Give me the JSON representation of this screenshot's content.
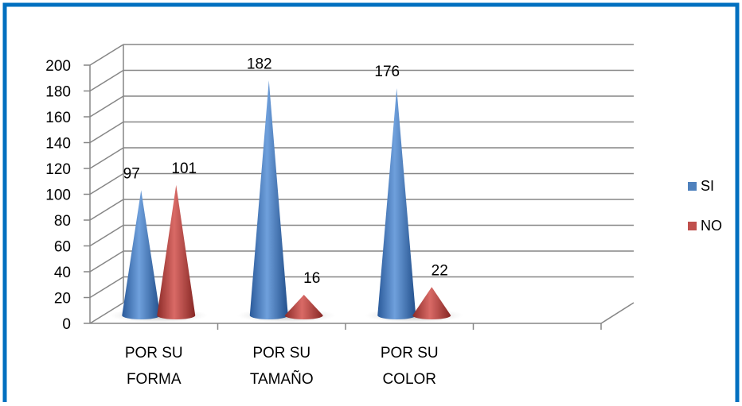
{
  "chart_data": {
    "type": "bar",
    "bar_shape": "cone-3d",
    "title": "",
    "xlabel": "",
    "ylabel": "",
    "ylim": [
      0,
      200
    ],
    "ytick_step": 20,
    "grid": true,
    "legend_position": "right",
    "categories": [
      "POR SU FORMA",
      "POR SU TAMAÑO",
      "POR SU COLOR"
    ],
    "category_lines": [
      [
        "POR SU",
        "FORMA"
      ],
      [
        "POR SU",
        "TAMAÑO"
      ],
      [
        "POR SU",
        "COLOR"
      ]
    ],
    "series": [
      {
        "name": "SI",
        "values": [
          97,
          182,
          176
        ],
        "color": "#4F81BD"
      },
      {
        "name": "NO",
        "values": [
          101,
          16,
          22
        ],
        "color": "#C0504D"
      }
    ],
    "yticks": [
      "0",
      "20",
      "40",
      "60",
      "80",
      "100",
      "120",
      "140",
      "160",
      "180",
      "200"
    ]
  },
  "colors": {
    "frame_border": "#0070C0",
    "grid": "#868686",
    "floor_shadow": "#c8c8c8"
  }
}
